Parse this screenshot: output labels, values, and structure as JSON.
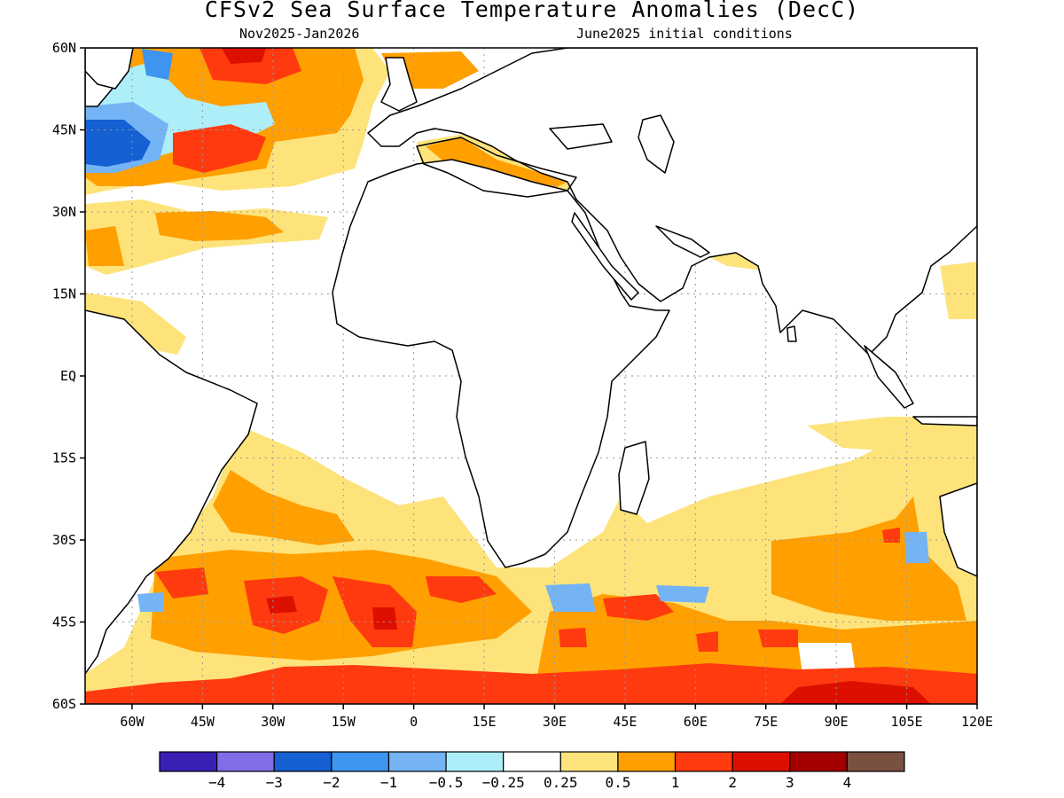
{
  "title": "CFSv2 Sea Surface Temperature Anomalies (DecC)",
  "subtitle_left": "Nov2025-Jan2026",
  "subtitle_right": "June2025 initial conditions",
  "map": {
    "lon_range": [
      -70,
      120
    ],
    "lat_range": [
      -60,
      60
    ],
    "x_ticks": [
      "60W",
      "45W",
      "30W",
      "15W",
      "0",
      "15E",
      "30E",
      "45E",
      "60E",
      "75E",
      "90E",
      "105E",
      "120E"
    ],
    "y_ticks": [
      "60N",
      "45N",
      "30N",
      "15N",
      "EQ",
      "15S",
      "30S",
      "45S",
      "60S"
    ],
    "grid": true
  },
  "colorbar": {
    "colors": [
      "#3a1fb5",
      "#7f6ee8",
      "#1560d2",
      "#3d95f0",
      "#74b4f5",
      "#aeeef8",
      "#ffffff",
      "#fde37a",
      "#ff9f00",
      "#ff3a0f",
      "#dd1000",
      "#a40000",
      "#7a5040"
    ],
    "labels": [
      "−4",
      "−3",
      "−2",
      "−1",
      "−0.5",
      "−0.25",
      "0.25",
      "0.5",
      "1",
      "2",
      "3",
      "4"
    ]
  }
}
